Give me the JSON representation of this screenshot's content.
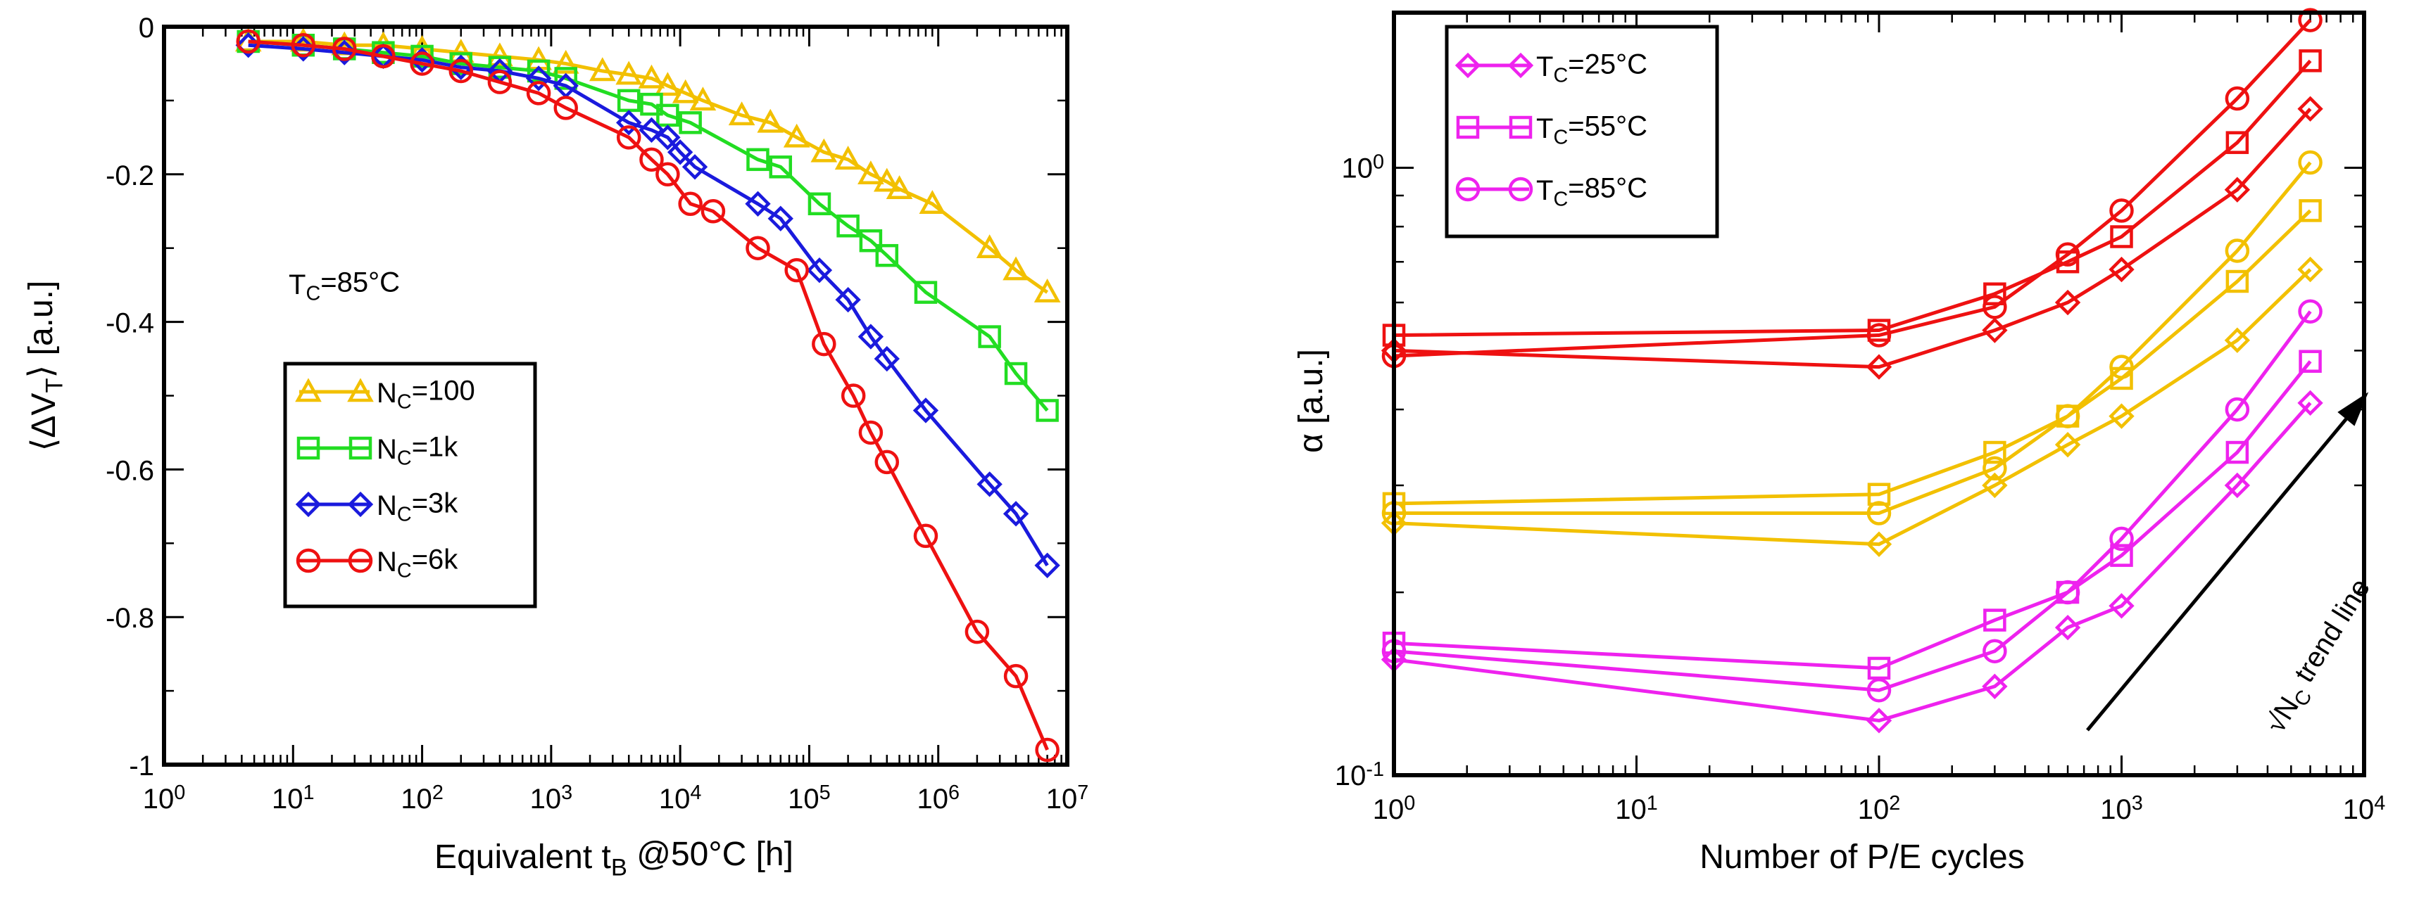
{
  "chart_data": [
    {
      "type": "line",
      "xlabel": "Equivalent t_B @50°C [h]",
      "ylabel": "⟨ΔV_T⟩ [a.u.]",
      "xscale": "log",
      "xlim": [
        1,
        10000000
      ],
      "ylim": [
        -1,
        0
      ],
      "xticks": [
        1,
        10,
        100,
        1000,
        10000,
        100000,
        1000000,
        10000000
      ],
      "xtick_labels": [
        "10^0",
        "10^1",
        "10^2",
        "10^3",
        "10^4",
        "10^5",
        "10^6",
        "10^7"
      ],
      "yticks": [
        0,
        -0.2,
        -0.4,
        -0.6,
        -0.8,
        -1
      ],
      "ytick_labels": [
        "0",
        "-0.2",
        "-0.4",
        "-0.6",
        "-0.8",
        "-1"
      ],
      "annotation": "T_C=85°C",
      "legend_position": "center-left",
      "series": [
        {
          "name": "N_C=100",
          "color": "#f2c000",
          "marker": "triangle",
          "x": [
            4.5,
            12,
            25,
            50,
            100,
            200,
            400,
            800,
            1300,
            2500,
            4000,
            6000,
            8000,
            11000,
            15000,
            30000,
            50000,
            80000,
            130000,
            200000,
            300000,
            400000,
            500000,
            900000,
            2500000,
            4000000,
            7000000
          ],
          "y": [
            -0.02,
            -0.02,
            -0.025,
            -0.025,
            -0.03,
            -0.035,
            -0.04,
            -0.045,
            -0.05,
            -0.06,
            -0.065,
            -0.07,
            -0.08,
            -0.09,
            -0.1,
            -0.12,
            -0.13,
            -0.15,
            -0.17,
            -0.18,
            -0.2,
            -0.21,
            -0.22,
            -0.24,
            -0.3,
            -0.33,
            -0.36
          ]
        },
        {
          "name": "N_C=1k",
          "color": "#22dd22",
          "marker": "square",
          "x": [
            4.5,
            12,
            25,
            50,
            100,
            200,
            400,
            800,
            1300,
            4000,
            6000,
            8000,
            12000,
            40000,
            60000,
            120000,
            200000,
            300000,
            400000,
            800000,
            2500000,
            4000000,
            7000000
          ],
          "y": [
            -0.02,
            -0.025,
            -0.03,
            -0.035,
            -0.04,
            -0.05,
            -0.055,
            -0.06,
            -0.07,
            -0.1,
            -0.105,
            -0.12,
            -0.13,
            -0.18,
            -0.19,
            -0.24,
            -0.27,
            -0.29,
            -0.31,
            -0.36,
            -0.42,
            -0.47,
            -0.52
          ]
        },
        {
          "name": "N_C=3k",
          "color": "#1a1add",
          "marker": "diamond",
          "x": [
            4.5,
            12,
            25,
            50,
            100,
            200,
            400,
            800,
            1300,
            4000,
            6000,
            8000,
            10000,
            13000,
            40000,
            60000,
            120000,
            200000,
            300000,
            400000,
            800000,
            2500000,
            4000000,
            7000000
          ],
          "y": [
            -0.025,
            -0.03,
            -0.035,
            -0.04,
            -0.045,
            -0.055,
            -0.06,
            -0.07,
            -0.08,
            -0.13,
            -0.14,
            -0.15,
            -0.17,
            -0.19,
            -0.24,
            -0.26,
            -0.33,
            -0.37,
            -0.42,
            -0.45,
            -0.52,
            -0.62,
            -0.66,
            -0.73
          ]
        },
        {
          "name": "N_C=6k",
          "color": "#ee1111",
          "marker": "circle",
          "x": [
            4.5,
            12,
            25,
            50,
            100,
            200,
            400,
            800,
            1300,
            4000,
            6000,
            8000,
            12000,
            18000,
            40000,
            80000,
            130000,
            220000,
            300000,
            400000,
            800000,
            2000000,
            4000000,
            7000000
          ],
          "y": [
            -0.02,
            -0.025,
            -0.03,
            -0.04,
            -0.05,
            -0.06,
            -0.075,
            -0.09,
            -0.11,
            -0.15,
            -0.18,
            -0.2,
            -0.24,
            -0.25,
            -0.3,
            -0.33,
            -0.43,
            -0.5,
            -0.55,
            -0.59,
            -0.69,
            -0.82,
            -0.88,
            -0.98
          ]
        }
      ]
    },
    {
      "type": "line",
      "xlabel": "Number of P/E cycles",
      "ylabel": "α [a.u.]",
      "xscale": "log",
      "yscale": "log",
      "xlim": [
        1,
        10000
      ],
      "ylim": [
        0.1,
        1.8
      ],
      "xticks": [
        1,
        10,
        100,
        1000,
        10000
      ],
      "xtick_labels": [
        "10^0",
        "10^1",
        "10^2",
        "10^3",
        "10^4"
      ],
      "yticks": [
        0.1,
        1
      ],
      "ytick_labels": [
        "10^-1",
        "10^0"
      ],
      "annotation": "√N_C trend line",
      "legend_position": "top-left",
      "legend": [
        {
          "name": "T_C=25°C",
          "marker": "diamond",
          "color": "#ee22ee"
        },
        {
          "name": "T_C=55°C",
          "marker": "square",
          "color": "#ee22ee"
        },
        {
          "name": "T_C=85°C",
          "marker": "circle",
          "color": "#ee22ee"
        }
      ],
      "x": [
        1,
        100,
        300,
        600,
        1000,
        3000,
        6000
      ],
      "series": [
        {
          "name": "red T_C=25°C",
          "color": "#ee1111",
          "marker": "diamond",
          "y": [
            0.5,
            0.47,
            0.54,
            0.6,
            0.68,
            0.92,
            1.25
          ]
        },
        {
          "name": "red T_C=55°C",
          "color": "#ee1111",
          "marker": "square",
          "y": [
            0.53,
            0.54,
            0.62,
            0.7,
            0.77,
            1.1,
            1.5
          ]
        },
        {
          "name": "red T_C=85°C",
          "color": "#ee1111",
          "marker": "circle",
          "y": [
            0.49,
            0.53,
            0.59,
            0.72,
            0.85,
            1.3,
            1.75
          ]
        },
        {
          "name": "yellow T_C=25°C",
          "color": "#f2c000",
          "marker": "diamond",
          "y": [
            0.26,
            0.24,
            0.3,
            0.35,
            0.39,
            0.52,
            0.68
          ]
        },
        {
          "name": "yellow T_C=55°C",
          "color": "#f2c000",
          "marker": "square",
          "y": [
            0.28,
            0.29,
            0.34,
            0.39,
            0.45,
            0.65,
            0.85
          ]
        },
        {
          "name": "yellow T_C=85°C",
          "color": "#f2c000",
          "marker": "circle",
          "y": [
            0.27,
            0.27,
            0.32,
            0.39,
            0.47,
            0.73,
            1.02
          ]
        },
        {
          "name": "magenta T_C=25°C",
          "color": "#ee22ee",
          "marker": "diamond",
          "y": [
            0.155,
            0.123,
            0.14,
            0.175,
            0.19,
            0.3,
            0.41
          ]
        },
        {
          "name": "magenta T_C=55°C",
          "color": "#ee22ee",
          "marker": "square",
          "y": [
            0.165,
            0.15,
            0.18,
            0.2,
            0.23,
            0.34,
            0.48
          ]
        },
        {
          "name": "magenta T_C=85°C",
          "color": "#ee22ee",
          "marker": "circle",
          "y": [
            0.16,
            0.138,
            0.16,
            0.2,
            0.245,
            0.4,
            0.58
          ]
        }
      ]
    }
  ]
}
